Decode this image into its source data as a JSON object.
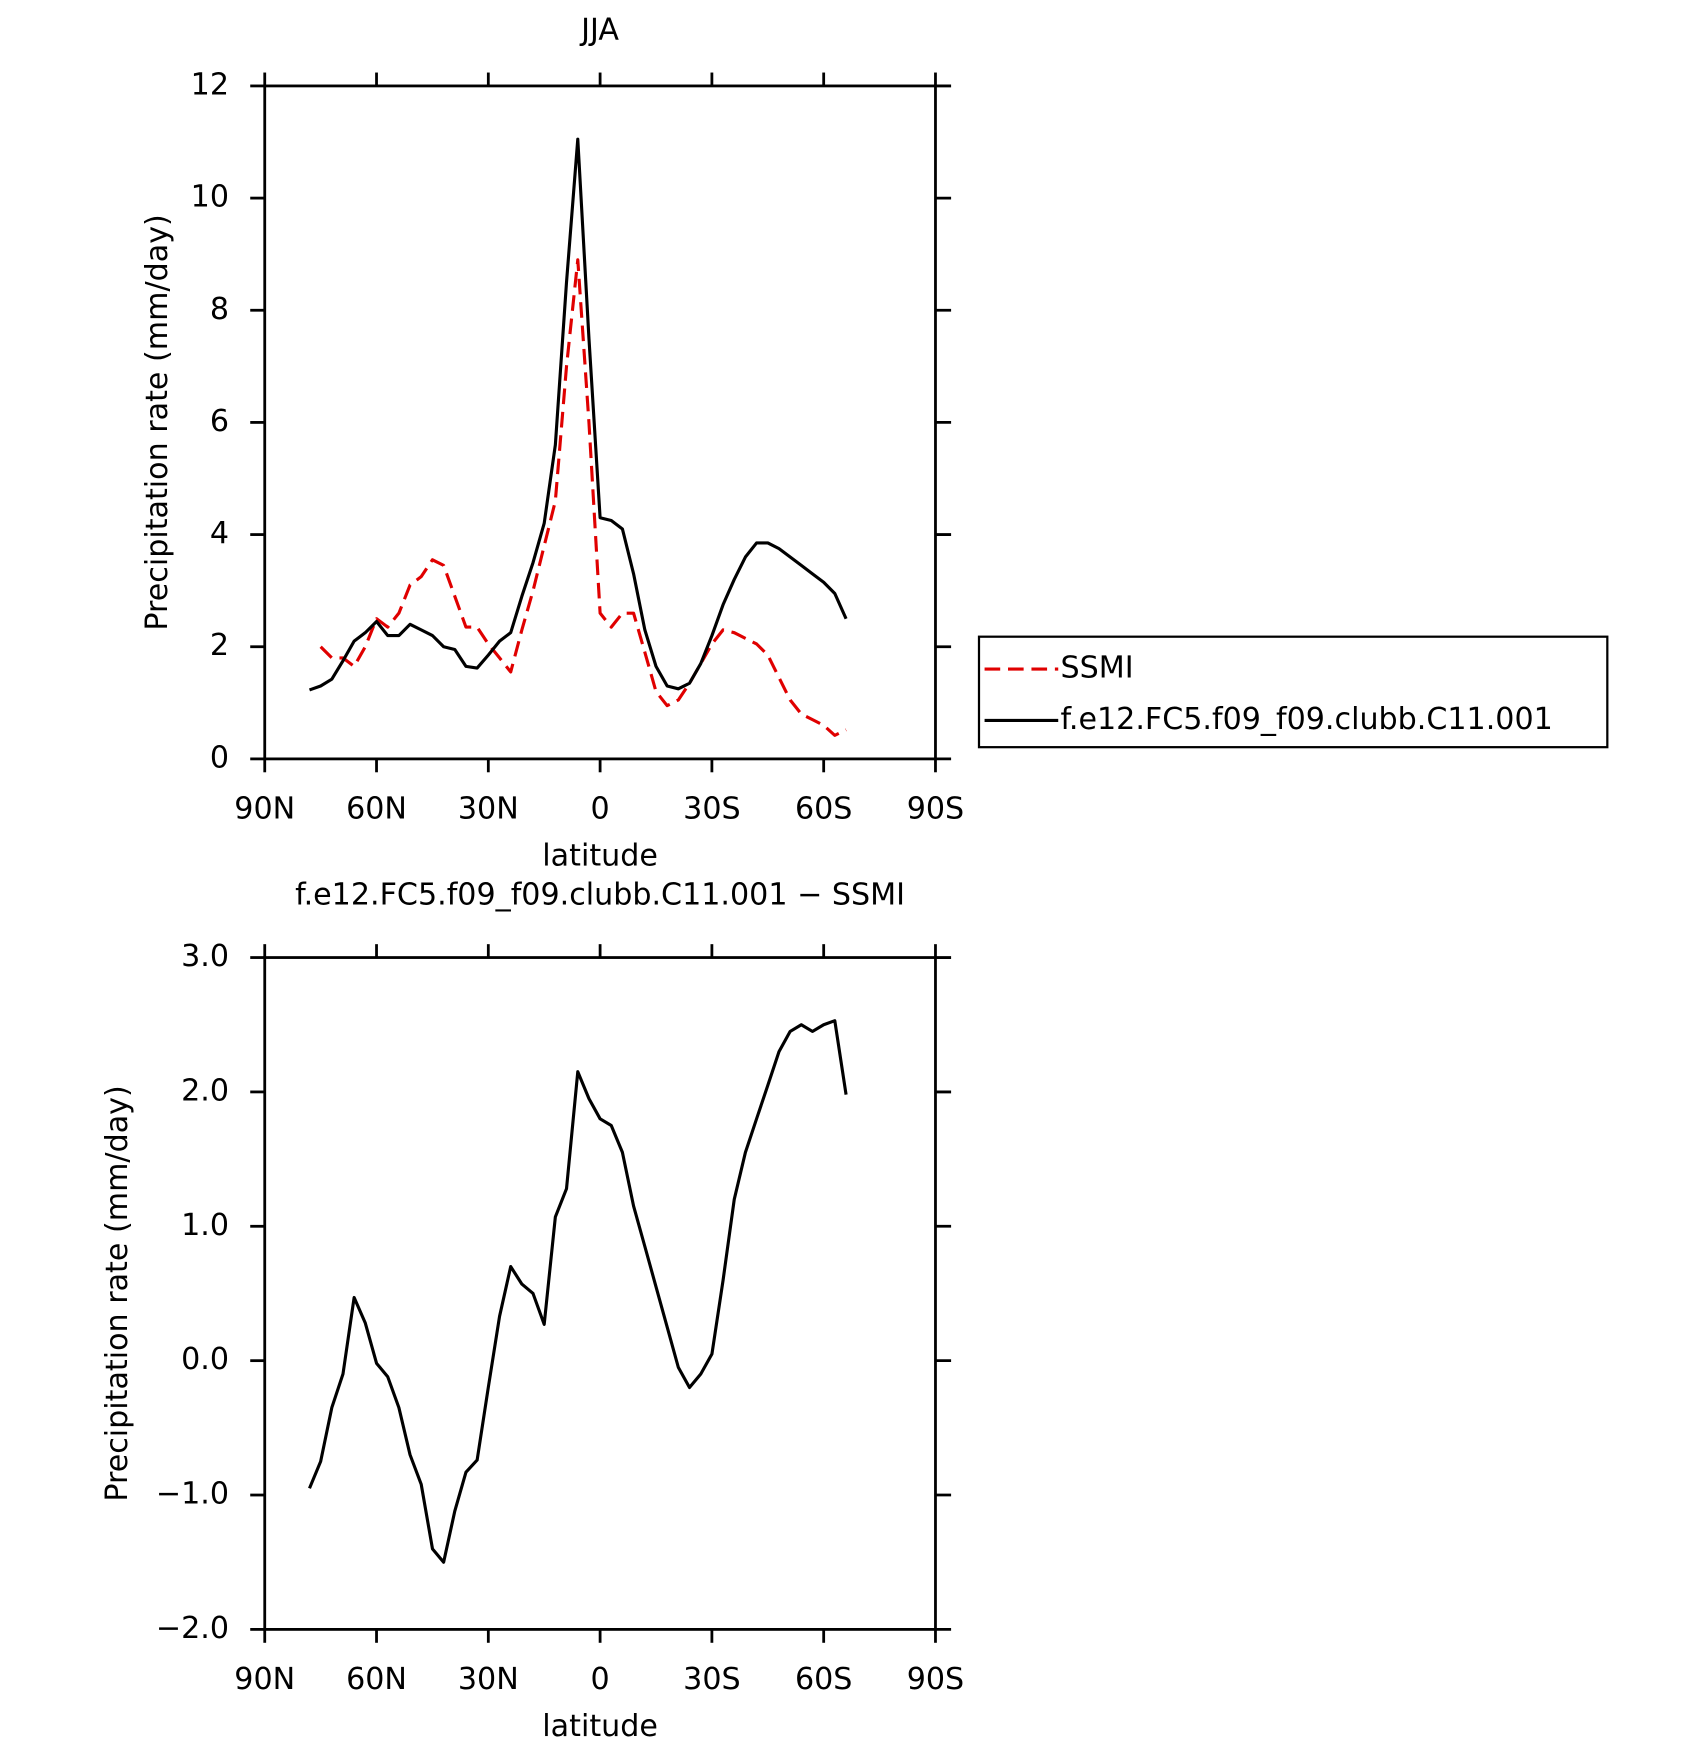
{
  "chart_data": [
    {
      "type": "line",
      "title": "JJA",
      "xlabel": "latitude",
      "ylabel": "Precipitation rate (mm/day)",
      "x": [
        78,
        75,
        72,
        69,
        66,
        63,
        60,
        57,
        54,
        51,
        48,
        45,
        42,
        39,
        36,
        33,
        30,
        27,
        24,
        21,
        18,
        15,
        12,
        9,
        6,
        3,
        0,
        -3,
        -6,
        -9,
        -12,
        -15,
        -18,
        -21,
        -24,
        -27,
        -30,
        -33,
        -36,
        -39,
        -42,
        -45,
        -48,
        -51,
        -54,
        -57,
        -60,
        -63,
        -66
      ],
      "xlim": [
        90,
        -90
      ],
      "xticks": [
        {
          "value": 90,
          "label": "90N"
        },
        {
          "value": 60,
          "label": "60N"
        },
        {
          "value": 30,
          "label": "30N"
        },
        0,
        {
          "value": -30,
          "label": "30S"
        },
        {
          "value": -60,
          "label": "60S"
        },
        {
          "value": -90,
          "label": "90S"
        }
      ],
      "ylim": [
        0,
        12
      ],
      "yticks": [
        0,
        2,
        4,
        6,
        8,
        10,
        12
      ],
      "legend": "right",
      "series": [
        {
          "name": "SSMI",
          "color": "#e00000",
          "line_style": "dashed",
          "values": [
            null,
            2.0,
            1.8,
            1.8,
            1.65,
            2.0,
            2.5,
            2.35,
            2.6,
            3.1,
            3.25,
            3.55,
            3.45,
            2.9,
            2.35,
            2.35,
            2.05,
            1.8,
            1.55,
            2.3,
            3.0,
            3.8,
            4.6,
            7.0,
            8.9,
            6.0,
            2.6,
            2.35,
            2.6,
            2.6,
            1.9,
            1.2,
            0.95,
            1.05,
            1.35,
            1.7,
            2.05,
            2.3,
            2.25,
            2.15,
            2.05,
            1.85,
            1.45,
            1.05,
            0.8,
            0.7,
            0.6,
            0.42,
            0.52
          ]
        },
        {
          "name": "f.e12.FC5.f09_f09.clubb.C11.001",
          "color": "#000000",
          "line_style": "solid",
          "values": [
            1.23,
            1.3,
            1.42,
            1.75,
            2.1,
            2.25,
            2.45,
            2.2,
            2.2,
            2.4,
            2.3,
            2.2,
            2.0,
            1.95,
            1.65,
            1.62,
            1.85,
            2.1,
            2.25,
            2.9,
            3.5,
            4.2,
            5.6,
            8.5,
            11.05,
            7.5,
            4.3,
            4.25,
            4.1,
            3.3,
            2.3,
            1.65,
            1.3,
            1.25,
            1.35,
            1.7,
            2.2,
            2.75,
            3.2,
            3.6,
            3.85,
            3.85,
            3.75,
            3.6,
            3.45,
            3.3,
            3.15,
            2.95,
            2.5
          ]
        }
      ]
    },
    {
      "type": "line",
      "title": "f.e12.FC5.f09_f09.clubb.C11.001 − SSMI",
      "xlabel": "latitude",
      "ylabel": "Precipitation rate (mm/day)",
      "x": [
        78,
        75,
        72,
        69,
        66,
        63,
        60,
        57,
        54,
        51,
        48,
        45,
        42,
        39,
        36,
        33,
        30,
        27,
        24,
        21,
        18,
        15,
        12,
        9,
        6,
        3,
        0,
        -3,
        -6,
        -9,
        -12,
        -15,
        -18,
        -21,
        -24,
        -27,
        -30,
        -33,
        -36,
        -39,
        -42,
        -45,
        -48,
        -51,
        -54,
        -57,
        -60,
        -63,
        -66
      ],
      "xlim": [
        90,
        -90
      ],
      "xticks": [
        {
          "value": 90,
          "label": "90N"
        },
        {
          "value": 60,
          "label": "60N"
        },
        {
          "value": 30,
          "label": "30N"
        },
        0,
        {
          "value": -30,
          "label": "30S"
        },
        {
          "value": -60,
          "label": "60S"
        },
        {
          "value": -90,
          "label": "90S"
        }
      ],
      "ylim": [
        -2,
        3
      ],
      "yticks": [
        {
          "value": -2,
          "label": "−2.0"
        },
        {
          "value": -1,
          "label": "−1.0"
        },
        {
          "value": 0,
          "label": "0.0"
        },
        {
          "value": 1,
          "label": "1.0"
        },
        {
          "value": 2,
          "label": "2.0"
        },
        {
          "value": 3,
          "label": "3.0"
        }
      ],
      "color": "#000000",
      "values": [
        -0.95,
        -0.75,
        -0.35,
        -0.1,
        0.47,
        0.28,
        -0.02,
        -0.12,
        -0.35,
        -0.7,
        -0.92,
        -1.4,
        -1.5,
        -1.12,
        -0.83,
        -0.74,
        -0.2,
        0.33,
        0.7,
        0.57,
        0.5,
        0.27,
        1.07,
        1.28,
        2.15,
        1.95,
        1.8,
        1.75,
        1.55,
        1.15,
        0.85,
        0.55,
        0.25,
        -0.05,
        -0.2,
        -0.1,
        0.05,
        0.6,
        1.2,
        1.55,
        1.8,
        2.05,
        2.3,
        2.45,
        2.5,
        2.45,
        2.5,
        2.53,
        1.98
      ]
    }
  ]
}
